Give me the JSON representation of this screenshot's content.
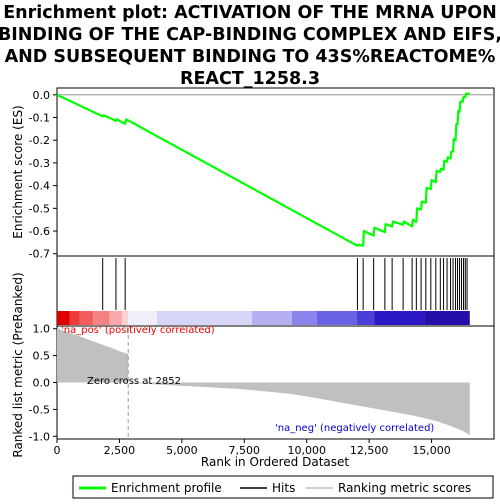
{
  "title_lines": [
    "Enrichment plot: ACTIVATION OF THE MRNA UPON",
    "BINDING OF THE CAP-BINDING COMPLEX AND EIFS,",
    "AND SUBSEQUENT BINDING TO 43S%REACTOME%",
    "REACT_1258.3"
  ],
  "chart_data": {
    "type": "line",
    "x_range": [
      0,
      17500
    ],
    "x_ticks": [
      0,
      2500,
      5000,
      7500,
      10000,
      12500,
      15000
    ],
    "x_tick_labels": [
      "0",
      "2,500",
      "5,000",
      "7,500",
      "10,000",
      "12,500",
      "15,000"
    ],
    "xlabel": "Rank in Ordered Dataset",
    "top_panel": {
      "ylabel": "Enrichment score (ES)",
      "ylim": [
        -0.71,
        0.03
      ],
      "y_ticks": [
        0.0,
        -0.1,
        -0.2,
        -0.3,
        -0.4,
        -0.5,
        -0.6,
        -0.7
      ],
      "y_tick_labels": [
        "0.0",
        "-0.1",
        "-0.2",
        "-0.3",
        "-0.4",
        "-0.5",
        "-0.6",
        "-0.7"
      ],
      "series_name": "Enrichment profile",
      "line_color": "#00ff00",
      "es_curve": [
        [
          0,
          0.0
        ],
        [
          1830,
          -0.095
        ],
        [
          1870,
          -0.09
        ],
        [
          2360,
          -0.115
        ],
        [
          2400,
          -0.108
        ],
        [
          2730,
          -0.128
        ],
        [
          2770,
          -0.108
        ],
        [
          12030,
          -0.665
        ],
        [
          12060,
          -0.66
        ],
        [
          12260,
          -0.665
        ],
        [
          12290,
          -0.6
        ],
        [
          12680,
          -0.62
        ],
        [
          12710,
          -0.585
        ],
        [
          13130,
          -0.605
        ],
        [
          13160,
          -0.57
        ],
        [
          13420,
          -0.58
        ],
        [
          13450,
          -0.558
        ],
        [
          13860,
          -0.572
        ],
        [
          13890,
          -0.558
        ],
        [
          14220,
          -0.58
        ],
        [
          14250,
          -0.55
        ],
        [
          14390,
          -0.56
        ],
        [
          14420,
          -0.5
        ],
        [
          14580,
          -0.505
        ],
        [
          14610,
          -0.47
        ],
        [
          14770,
          -0.475
        ],
        [
          14800,
          -0.41
        ],
        [
          14970,
          -0.415
        ],
        [
          15000,
          -0.375
        ],
        [
          15170,
          -0.385
        ],
        [
          15200,
          -0.335
        ],
        [
          15350,
          -0.34
        ],
        [
          15380,
          -0.325
        ],
        [
          15480,
          -0.33
        ],
        [
          15510,
          -0.29
        ],
        [
          15620,
          -0.295
        ],
        [
          15650,
          -0.275
        ],
        [
          15760,
          -0.28
        ],
        [
          15790,
          -0.25
        ],
        [
          15860,
          -0.25
        ],
        [
          15890,
          -0.195
        ],
        [
          15960,
          -0.2
        ],
        [
          15990,
          -0.13
        ],
        [
          16040,
          -0.13
        ],
        [
          16070,
          -0.07
        ],
        [
          16120,
          -0.075
        ],
        [
          16150,
          -0.03
        ],
        [
          16250,
          -0.03
        ],
        [
          16280,
          -0.01
        ],
        [
          16350,
          -0.01
        ],
        [
          16380,
          0.005
        ],
        [
          16530,
          0.005
        ]
      ]
    },
    "hits_panel": {
      "series_name": "Hits",
      "hit_positions": [
        1830,
        2360,
        2730,
        12030,
        12260,
        12680,
        13130,
        13420,
        13860,
        14220,
        14390,
        14580,
        14770,
        14970,
        15170,
        15350,
        15480,
        15620,
        15760,
        15860,
        15960,
        16040,
        16120,
        16200,
        16280,
        16350,
        16420
      ]
    },
    "heatmap_bar": {
      "segments": [
        {
          "from": 0,
          "to": 500,
          "color": "#dd0000"
        },
        {
          "from": 500,
          "to": 900,
          "color": "#ee3a3a"
        },
        {
          "from": 900,
          "to": 1450,
          "color": "#f25e5e"
        },
        {
          "from": 1450,
          "to": 2100,
          "color": "#f48282"
        },
        {
          "from": 2100,
          "to": 2600,
          "color": "#f8a8a8"
        },
        {
          "from": 2600,
          "to": 2852,
          "color": "#fbd0d0"
        },
        {
          "from": 2852,
          "to": 4000,
          "color": "#f0eefa"
        },
        {
          "from": 4000,
          "to": 7800,
          "color": "#d8d6f8"
        },
        {
          "from": 7800,
          "to": 9400,
          "color": "#b4b0f2"
        },
        {
          "from": 9400,
          "to": 10400,
          "color": "#8a84ec"
        },
        {
          "from": 10400,
          "to": 12000,
          "color": "#6a62e4"
        },
        {
          "from": 12000,
          "to": 12700,
          "color": "#4a40d8"
        },
        {
          "from": 12700,
          "to": 14700,
          "color": "#2c18c4"
        },
        {
          "from": 14700,
          "to": 16530,
          "color": "#2410a8"
        }
      ]
    },
    "rank_panel": {
      "ylabel": "Ranked list metric (PreRanked)",
      "ylim": [
        -1.05,
        1.05
      ],
      "y_ticks": [
        1.0,
        0.5,
        0.0,
        -0.5,
        -1.0
      ],
      "y_tick_labels": [
        "1.0",
        "0.5",
        "0.0",
        "-0.5",
        "-1.0"
      ],
      "series_name": "Ranking metric scores",
      "fill_color": "#c0c0c0",
      "metric_curve": [
        [
          0,
          1.02
        ],
        [
          150,
          0.98
        ],
        [
          400,
          0.94
        ],
        [
          700,
          0.89
        ],
        [
          1000,
          0.84
        ],
        [
          1300,
          0.79
        ],
        [
          1600,
          0.74
        ],
        [
          1900,
          0.69
        ],
        [
          2200,
          0.64
        ],
        [
          2500,
          0.58
        ],
        [
          2852,
          0.53
        ],
        [
          2852,
          0.0
        ],
        [
          3400,
          -0.02
        ],
        [
          4100,
          -0.04
        ],
        [
          4900,
          -0.06
        ],
        [
          5700,
          -0.08
        ],
        [
          6500,
          -0.1
        ],
        [
          7300,
          -0.12
        ],
        [
          8000,
          -0.15
        ],
        [
          8700,
          -0.18
        ],
        [
          9300,
          -0.21
        ],
        [
          9900,
          -0.25
        ],
        [
          10500,
          -0.3
        ],
        [
          11100,
          -0.35
        ],
        [
          11700,
          -0.4
        ],
        [
          12300,
          -0.45
        ],
        [
          12900,
          -0.5
        ],
        [
          13500,
          -0.55
        ],
        [
          14100,
          -0.6
        ],
        [
          14700,
          -0.66
        ],
        [
          15200,
          -0.72
        ],
        [
          15600,
          -0.78
        ],
        [
          15950,
          -0.84
        ],
        [
          16200,
          -0.89
        ],
        [
          16400,
          -0.94
        ],
        [
          16530,
          -0.98
        ]
      ],
      "zero_cross_rank": 2852,
      "zero_cross_label": "Zero cross at 2852",
      "pos_label": "'na_pos' (positively correlated)",
      "neg_label": "'na_neg' (negatively correlated)",
      "pos_label_color": "#ee0000",
      "neg_label_color": "#0000cc"
    },
    "legend": {
      "placement": "bottom",
      "items": [
        {
          "label": "Enrichment profile",
          "color": "#00ff00"
        },
        {
          "label": "Hits",
          "color": "#000000"
        },
        {
          "label": "Ranking metric scores",
          "color": "#c0c0c0"
        }
      ]
    }
  }
}
